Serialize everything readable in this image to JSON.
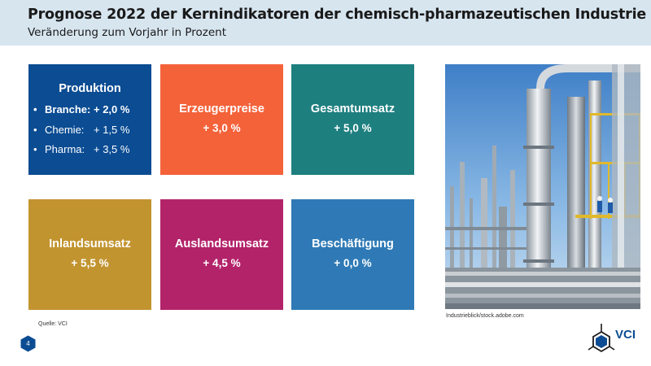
{
  "header": {
    "title": "Prognose 2022 der Kernindikatoren der chemisch-pharmazeutischen Industrie",
    "subtitle": "Veränderung zum Vorjahr in Prozent"
  },
  "tiles": [
    {
      "title": "Produktion",
      "items": [
        {
          "bullet": "•",
          "label": "Branche:",
          "value": "+ 2,0 %"
        },
        {
          "bullet": "•",
          "label": "Chemie:",
          "value": "+ 1,5 %"
        },
        {
          "bullet": "•",
          "label": "Pharma:",
          "value": "+ 3,5 %"
        }
      ],
      "color": "#0b4c93"
    },
    {
      "title": "Erzeugerpreise",
      "value": "+ 3,0 %",
      "color": "#f4623a"
    },
    {
      "title": "Gesamtumsatz",
      "value": "+ 5,0 %",
      "color": "#1e7f7f"
    },
    {
      "title": "Inlandsumsatz",
      "value": "+ 5,5 %",
      "color": "#c29430"
    },
    {
      "title": "Auslandsumsatz",
      "value": "+ 4,5 %",
      "color": "#b3236a"
    },
    {
      "title": "Beschäftigung",
      "value": "+ 0,0 %",
      "color": "#2f7ab6"
    }
  ],
  "photo": {
    "subject": "industrial chemical plant with pipes and workers",
    "credit": "Industrieblick/stock.adobe.com"
  },
  "footer": {
    "source": "Quelle: VCI",
    "page_number": "4",
    "logo_text": "VCI",
    "logo_icon": "hexagon-molecule-icon"
  },
  "colors": {
    "header_band": "#d7e5ef",
    "brand_blue": "#0b4c93"
  }
}
